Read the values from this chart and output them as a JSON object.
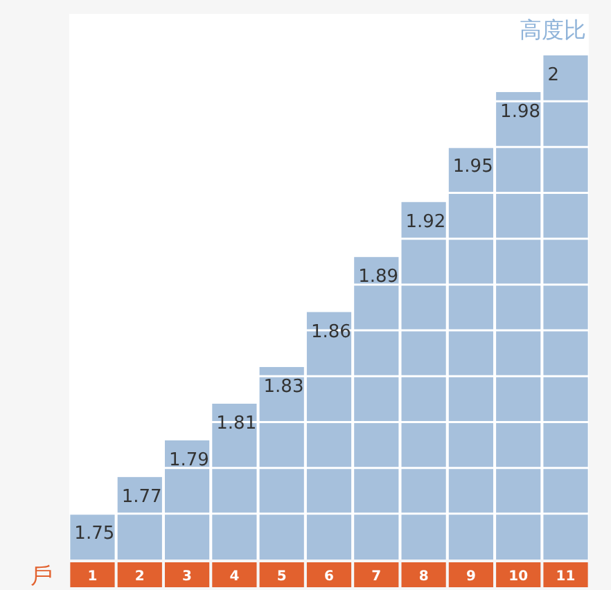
{
  "chart_data": {
    "type": "bar",
    "title": "高度比",
    "xlabel": "戶",
    "categories": [
      "1",
      "2",
      "3",
      "4",
      "5",
      "6",
      "7",
      "8",
      "9",
      "10",
      "11"
    ],
    "values": [
      1.75,
      1.77,
      1.79,
      1.81,
      1.83,
      1.86,
      1.89,
      1.92,
      1.95,
      1.98,
      2
    ],
    "color": "#a6c0dc",
    "ylim": [
      1.725,
      2.0
    ],
    "yticks": [
      {
        "value": 1.75,
        "label": null
      },
      {
        "value": 1.775,
        "label": null
      },
      {
        "value": 1.8,
        "label": null
      },
      {
        "value": 1.825,
        "label": null
      },
      {
        "value": 1.85,
        "label": null
      },
      {
        "value": 1.875,
        "label": null
      },
      {
        "value": 1.9,
        "label": null
      },
      {
        "value": 1.925,
        "label": null
      },
      {
        "value": 1.95,
        "label": null
      },
      {
        "value": 1.975,
        "label": null
      }
    ],
    "grid": "y",
    "tick_labels": "x",
    "data_labels": true
  }
}
